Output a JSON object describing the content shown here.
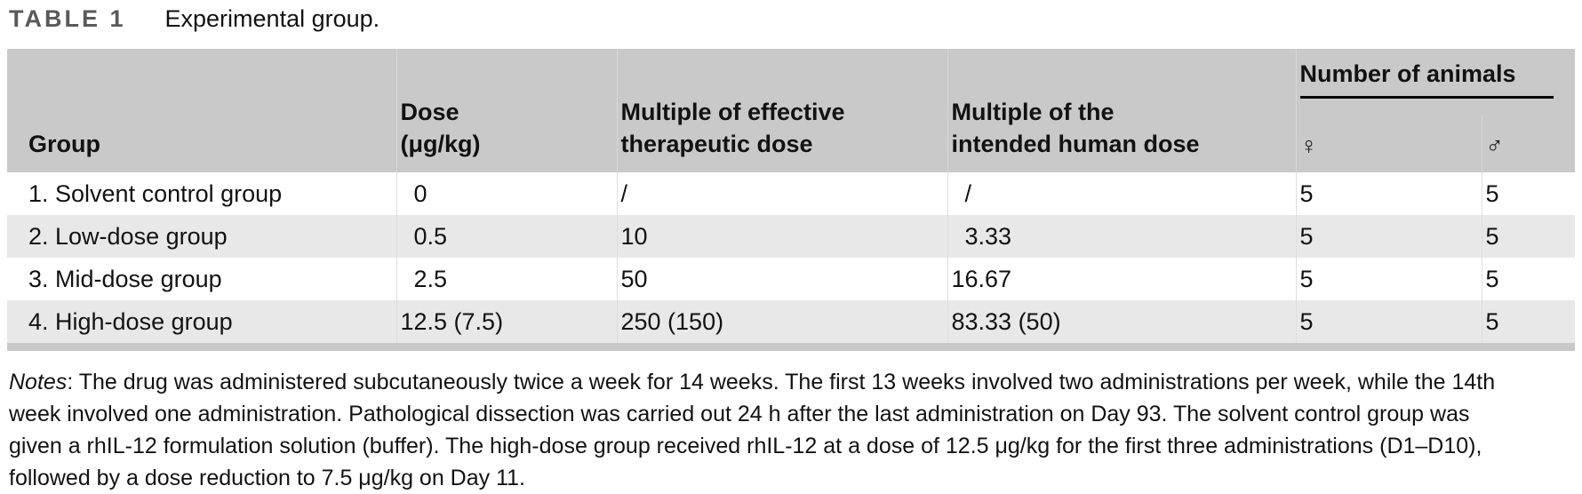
{
  "title": {
    "label": "TABLE 1",
    "caption": "Experimental group."
  },
  "table": {
    "column_order": [
      "group",
      "dose",
      "mult_eff",
      "mult_human",
      "female",
      "male"
    ],
    "decimal_aligned": [
      "dose",
      "mult_human"
    ],
    "headers": {
      "group": "Group",
      "dose_line1": "Dose",
      "dose_line2": "(μg/kg)",
      "mult_eff_line1": "Multiple of effective",
      "mult_eff_line2": "therapeutic dose",
      "mult_human_line1": "Multiple of the",
      "mult_human_line2": "intended human dose",
      "animals_group": "Number of animals",
      "female": "♀",
      "male": "♂"
    },
    "rows": [
      {
        "group": "1. Solvent control group",
        "dose": "0",
        "mult_eff": "/",
        "mult_human": "/",
        "female": "5",
        "male": "5"
      },
      {
        "group": "2. Low-dose group",
        "dose": "0.5",
        "mult_eff": "10",
        "mult_human": "3.33",
        "female": "5",
        "male": "5"
      },
      {
        "group": "3. Mid-dose group",
        "dose": "2.5",
        "mult_eff": "50",
        "mult_human": "16.67",
        "female": "5",
        "male": "5"
      },
      {
        "group": "4. High-dose group",
        "dose": "12.5 (7.5)",
        "mult_eff": "250 (150)",
        "mult_human": "83.33 (50)",
        "female": "5",
        "male": "5"
      }
    ]
  },
  "notes": {
    "label": "Notes",
    "lines": [
      ": The drug was administered subcutaneously twice a week for 14 weeks. The first 13 weeks involved two administrations per week, while the 14th",
      "week involved one administration. Pathological dissection was carried out 24 h after the last administration on Day 93. The solvent control group was",
      "given a rhIL-12 formulation solution (buffer). The high-dose group received rhIL-12 at a dose of 12.5 μg/kg for the first three administrations (D1–D10),",
      "followed by a dose reduction to 7.5 μg/kg on Day 11."
    ]
  },
  "colors": {
    "header_bg": "#c9c9c9",
    "row_alt_bg": "#e8e8e8",
    "table_bottom": "#c9c9c9",
    "title_label": "#5a5a5a",
    "text": "#121212"
  }
}
